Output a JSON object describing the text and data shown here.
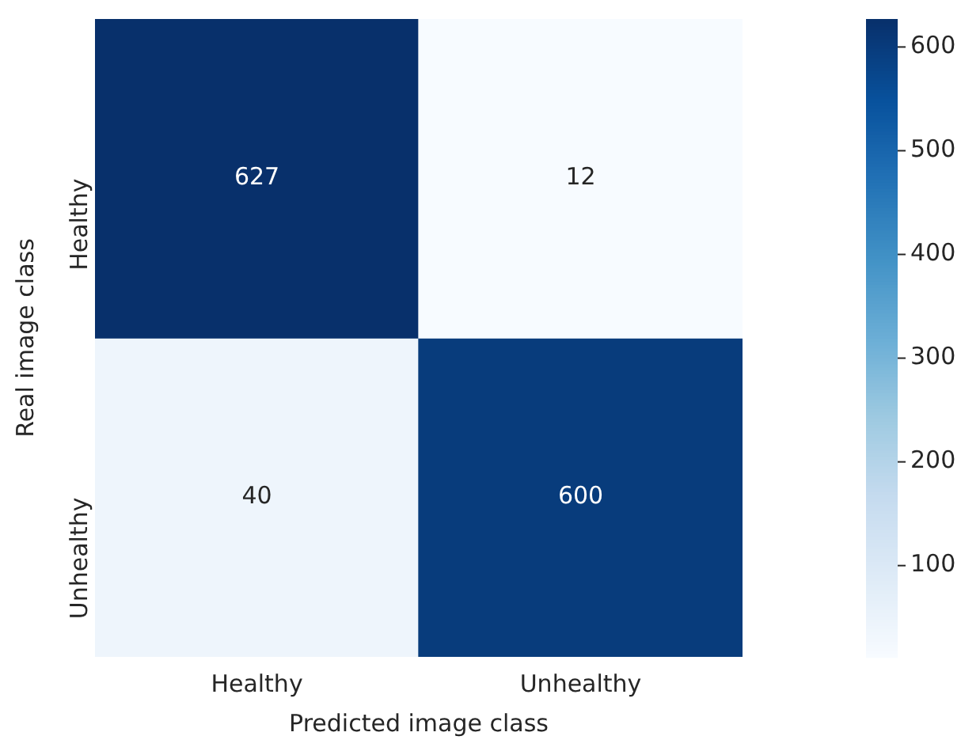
{
  "chart_data": {
    "type": "heatmap",
    "xlabel": "Predicted image class",
    "ylabel": "Real image class",
    "categories": [
      "Healthy",
      "Unhealthy"
    ],
    "y_categories": [
      "Healthy",
      "Unhealthy"
    ],
    "cells": [
      [
        627,
        12
      ],
      [
        40,
        600
      ]
    ],
    "clim": [
      12,
      627
    ],
    "cticks": [
      100,
      200,
      300,
      400,
      500,
      600
    ],
    "data_labels": true
  }
}
